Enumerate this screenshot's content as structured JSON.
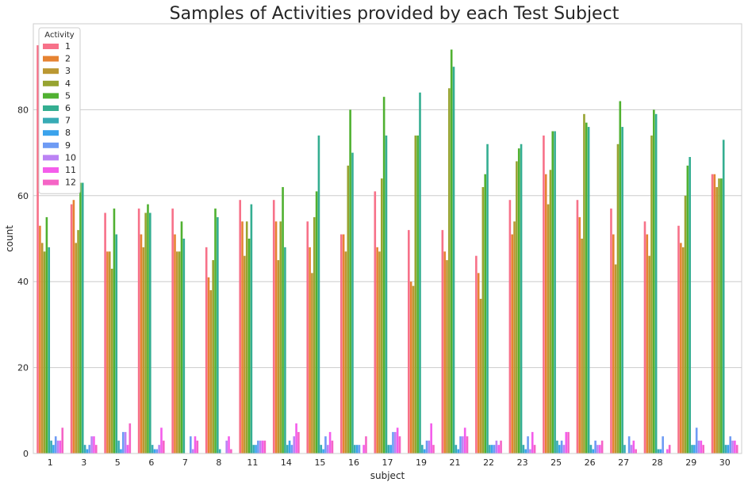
{
  "chart_data": {
    "type": "bar",
    "title": "Samples of Activities provided by each Test Subject",
    "xlabel": "subject",
    "ylabel": "count",
    "ylim": [
      0,
      100
    ],
    "yticks": [
      0,
      20,
      40,
      60,
      80
    ],
    "grid": "horizontal",
    "legend": {
      "title": "Activity",
      "placement": "top-left"
    },
    "categories": [
      "1",
      "3",
      "5",
      "6",
      "7",
      "8",
      "11",
      "14",
      "15",
      "16",
      "17",
      "19",
      "21",
      "22",
      "23",
      "25",
      "26",
      "27",
      "28",
      "29",
      "30"
    ],
    "series": [
      {
        "name": "1",
        "color": "#f77189",
        "values": [
          95,
          58,
          56,
          57,
          57,
          48,
          59,
          59,
          54,
          51,
          61,
          52,
          52,
          46,
          59,
          74,
          59,
          57,
          54,
          53,
          65
        ]
      },
      {
        "name": "2",
        "color": "#e68332",
        "values": [
          53,
          59,
          47,
          51,
          51,
          41,
          54,
          54,
          48,
          51,
          48,
          40,
          47,
          42,
          51,
          65,
          55,
          51,
          51,
          49,
          65
        ]
      },
      {
        "name": "3",
        "color": "#bb9832",
        "values": [
          49,
          49,
          47,
          48,
          47,
          38,
          46,
          45,
          42,
          47,
          47,
          39,
          45,
          36,
          54,
          58,
          50,
          44,
          46,
          48,
          62
        ]
      },
      {
        "name": "4",
        "color": "#97a431",
        "values": [
          47,
          52,
          43,
          56,
          47,
          45,
          54,
          54,
          55,
          67,
          64,
          74,
          85,
          62,
          68,
          66,
          79,
          72,
          74,
          60,
          64
        ]
      },
      {
        "name": "5",
        "color": "#50b131",
        "values": [
          55,
          63,
          57,
          58,
          54,
          57,
          50,
          62,
          61,
          80,
          83,
          74,
          94,
          65,
          71,
          75,
          77,
          82,
          80,
          67,
          64
        ]
      },
      {
        "name": "6",
        "color": "#34ae91",
        "values": [
          48,
          63,
          51,
          56,
          50,
          55,
          58,
          48,
          74,
          70,
          74,
          84,
          90,
          72,
          72,
          75,
          76,
          76,
          79,
          69,
          73
        ]
      },
      {
        "name": "7",
        "color": "#37abb5",
        "values": [
          3,
          2,
          3,
          2,
          0,
          1,
          2,
          2,
          2,
          2,
          2,
          2,
          2,
          2,
          2,
          3,
          2,
          2,
          1,
          2,
          2
        ]
      },
      {
        "name": "8",
        "color": "#3ba3ec",
        "values": [
          2,
          1,
          1,
          1,
          0,
          0,
          2,
          3,
          1,
          2,
          2,
          1,
          1,
          2,
          1,
          2,
          1,
          0,
          1,
          2,
          2
        ]
      },
      {
        "name": "9",
        "color": "#6e9bf4",
        "values": [
          4,
          2,
          5,
          1,
          4,
          0,
          3,
          2,
          4,
          2,
          5,
          3,
          4,
          2,
          4,
          3,
          3,
          4,
          4,
          6,
          4
        ]
      },
      {
        "name": "10",
        "color": "#bb83f4",
        "values": [
          3,
          4,
          5,
          2,
          1,
          3,
          3,
          4,
          2,
          0,
          5,
          3,
          4,
          3,
          1,
          2,
          2,
          2,
          0,
          3,
          3
        ]
      },
      {
        "name": "11",
        "color": "#f45deb",
        "values": [
          3,
          4,
          2,
          6,
          4,
          4,
          3,
          7,
          5,
          2,
          6,
          7,
          6,
          2,
          5,
          5,
          2,
          3,
          1,
          3,
          3
        ]
      },
      {
        "name": "12",
        "color": "#f564c6",
        "values": [
          6,
          2,
          7,
          3,
          3,
          1,
          3,
          5,
          3,
          4,
          4,
          2,
          4,
          3,
          2,
          5,
          3,
          1,
          2,
          2,
          2
        ]
      }
    ]
  }
}
